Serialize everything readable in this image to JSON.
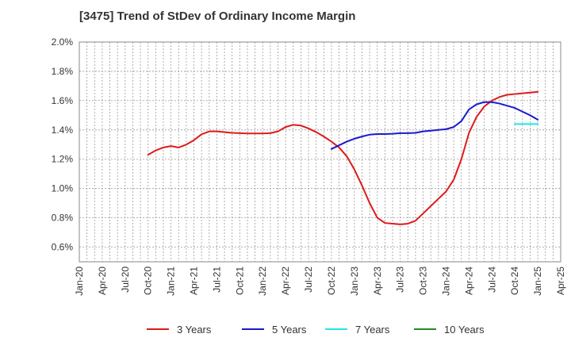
{
  "chart_data": {
    "type": "line",
    "title": "[3475]  Trend of StDev of Ordinary Income Margin",
    "xlabel": "",
    "ylabel": "",
    "x_ticks": [
      "Jan-20",
      "Apr-20",
      "Jul-20",
      "Oct-20",
      "Jan-21",
      "Apr-21",
      "Jul-21",
      "Oct-21",
      "Jan-22",
      "Apr-22",
      "Jul-22",
      "Oct-22",
      "Jan-23",
      "Apr-23",
      "Jul-23",
      "Oct-23",
      "Jan-24",
      "Apr-24",
      "Jul-24",
      "Oct-24",
      "Jan-25",
      "Apr-25"
    ],
    "y_ticks": [
      "0.6%",
      "0.8%",
      "1.0%",
      "1.2%",
      "1.4%",
      "1.6%",
      "1.8%",
      "2.0%"
    ],
    "y_tick_values": [
      0.6,
      0.8,
      1.0,
      1.2,
      1.4,
      1.6,
      1.8,
      2.0
    ],
    "ylim": [
      0.5,
      2.0
    ],
    "grid": true,
    "legend_position": "bottom",
    "x_start": "Jan-20",
    "series": [
      {
        "name": "3 Years",
        "color": "#dd1a1a",
        "x": [
          "Oct-20",
          "Nov-20",
          "Dec-20",
          "Jan-21",
          "Feb-21",
          "Mar-21",
          "Apr-21",
          "May-21",
          "Jun-21",
          "Jul-21",
          "Aug-21",
          "Sep-21",
          "Oct-21",
          "Nov-21",
          "Dec-21",
          "Jan-22",
          "Feb-22",
          "Mar-22",
          "Apr-22",
          "May-22",
          "Jun-22",
          "Jul-22",
          "Aug-22",
          "Sep-22",
          "Oct-22",
          "Nov-22",
          "Dec-22",
          "Jan-23",
          "Feb-23",
          "Mar-23",
          "Apr-23",
          "May-23",
          "Jun-23",
          "Jul-23",
          "Aug-23",
          "Sep-23",
          "Oct-23",
          "Nov-23",
          "Dec-23",
          "Jan-24",
          "Feb-24",
          "Mar-24",
          "Apr-24",
          "May-24",
          "Jun-24",
          "Jul-24",
          "Aug-24",
          "Sep-24",
          "Oct-24",
          "Nov-24",
          "Dec-24",
          "Jan-25"
        ],
        "values": [
          1.23,
          1.26,
          1.28,
          1.29,
          1.28,
          1.3,
          1.33,
          1.37,
          1.39,
          1.39,
          1.385,
          1.38,
          1.378,
          1.376,
          1.376,
          1.376,
          1.378,
          1.39,
          1.42,
          1.435,
          1.43,
          1.41,
          1.385,
          1.355,
          1.32,
          1.28,
          1.22,
          1.13,
          1.02,
          0.9,
          0.8,
          0.765,
          0.76,
          0.755,
          0.76,
          0.78,
          0.83,
          0.88,
          0.93,
          0.98,
          1.06,
          1.2,
          1.38,
          1.49,
          1.56,
          1.6,
          1.625,
          1.64,
          1.645,
          1.65,
          1.655,
          1.66
        ]
      },
      {
        "name": "5 Years",
        "color": "#1a1acc",
        "x": [
          "Oct-22",
          "Nov-22",
          "Dec-22",
          "Jan-23",
          "Feb-23",
          "Mar-23",
          "Apr-23",
          "May-23",
          "Jun-23",
          "Jul-23",
          "Aug-23",
          "Sep-23",
          "Oct-23",
          "Nov-23",
          "Dec-23",
          "Jan-24",
          "Feb-24",
          "Mar-24",
          "Apr-24",
          "May-24",
          "Jun-24",
          "Jul-24",
          "Aug-24",
          "Sep-24",
          "Oct-24",
          "Nov-24",
          "Dec-24",
          "Jan-25"
        ],
        "values": [
          1.27,
          1.295,
          1.32,
          1.34,
          1.355,
          1.368,
          1.372,
          1.372,
          1.374,
          1.378,
          1.378,
          1.38,
          1.39,
          1.395,
          1.4,
          1.405,
          1.42,
          1.46,
          1.54,
          1.575,
          1.59,
          1.59,
          1.58,
          1.565,
          1.55,
          1.525,
          1.5,
          1.47
        ]
      },
      {
        "name": "7 Years",
        "color": "#22e5e5",
        "x": [
          "Oct-24",
          "Nov-24",
          "Dec-24",
          "Jan-25"
        ],
        "values": [
          1.44,
          1.44,
          1.44,
          1.44
        ]
      },
      {
        "name": "10 Years",
        "color": "#228b22",
        "x": [],
        "values": []
      }
    ]
  }
}
